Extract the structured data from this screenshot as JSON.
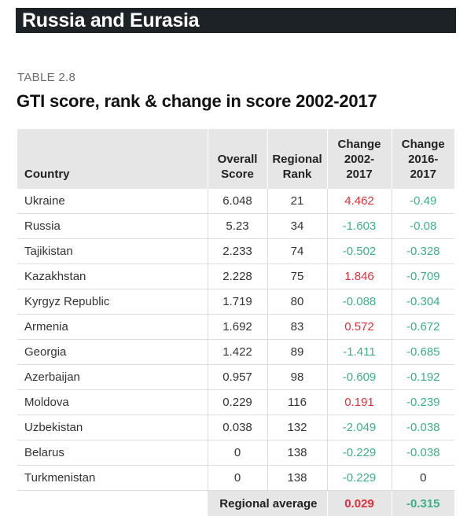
{
  "header": {
    "banner": "Russia and Eurasia",
    "table_label": "TABLE 2.8",
    "table_title": "GTI score, rank & change in score 2002-2017"
  },
  "colors": {
    "banner_bg": "#1d2227",
    "header_bg": "#e6e6e6",
    "decrease": "#3fae89",
    "increase": "#d9323c"
  },
  "table": {
    "headers": {
      "country": "Country",
      "score_l1": "Overall",
      "score_l2": "Score",
      "rank_l1": "Regional",
      "rank_l2": "Rank",
      "ch1_l1": "Change",
      "ch1_l2": "2002-",
      "ch1_l3": "2017",
      "ch2_l1": "Change",
      "ch2_l2": "2016-",
      "ch2_l3": "2017"
    },
    "rows": [
      {
        "country": "Ukraine",
        "score": "6.048",
        "rank": "21",
        "ch1": "4.462",
        "ch2": "-0.49"
      },
      {
        "country": "Russia",
        "score": "5.23",
        "rank": "34",
        "ch1": "-1.603",
        "ch2": "-0.08"
      },
      {
        "country": "Tajikistan",
        "score": "2.233",
        "rank": "74",
        "ch1": "-0.502",
        "ch2": "-0.328"
      },
      {
        "country": "Kazakhstan",
        "score": "2.228",
        "rank": "75",
        "ch1": "1.846",
        "ch2": "-0.709"
      },
      {
        "country": "Kyrgyz Republic",
        "score": "1.719",
        "rank": "80",
        "ch1": "-0.088",
        "ch2": "-0.304"
      },
      {
        "country": "Armenia",
        "score": "1.692",
        "rank": "83",
        "ch1": "0.572",
        "ch2": "-0.672"
      },
      {
        "country": "Georgia",
        "score": "1.422",
        "rank": "89",
        "ch1": "-1.411",
        "ch2": "-0.685"
      },
      {
        "country": "Azerbaijan",
        "score": "0.957",
        "rank": "98",
        "ch1": "-0.609",
        "ch2": "-0.192"
      },
      {
        "country": "Moldova",
        "score": "0.229",
        "rank": "116",
        "ch1": "0.191",
        "ch2": "-0.239"
      },
      {
        "country": "Uzbekistan",
        "score": "0.038",
        "rank": "132",
        "ch1": "-2.049",
        "ch2": "-0.038"
      },
      {
        "country": "Belarus",
        "score": "0",
        "rank": "138",
        "ch1": "-0.229",
        "ch2": "-0.038"
      },
      {
        "country": "Turkmenistan",
        "score": "0",
        "rank": "138",
        "ch1": "-0.229",
        "ch2": "0"
      }
    ],
    "footer": {
      "label": "Regional average",
      "ch1": "0.029",
      "ch2": "-0.315"
    }
  }
}
